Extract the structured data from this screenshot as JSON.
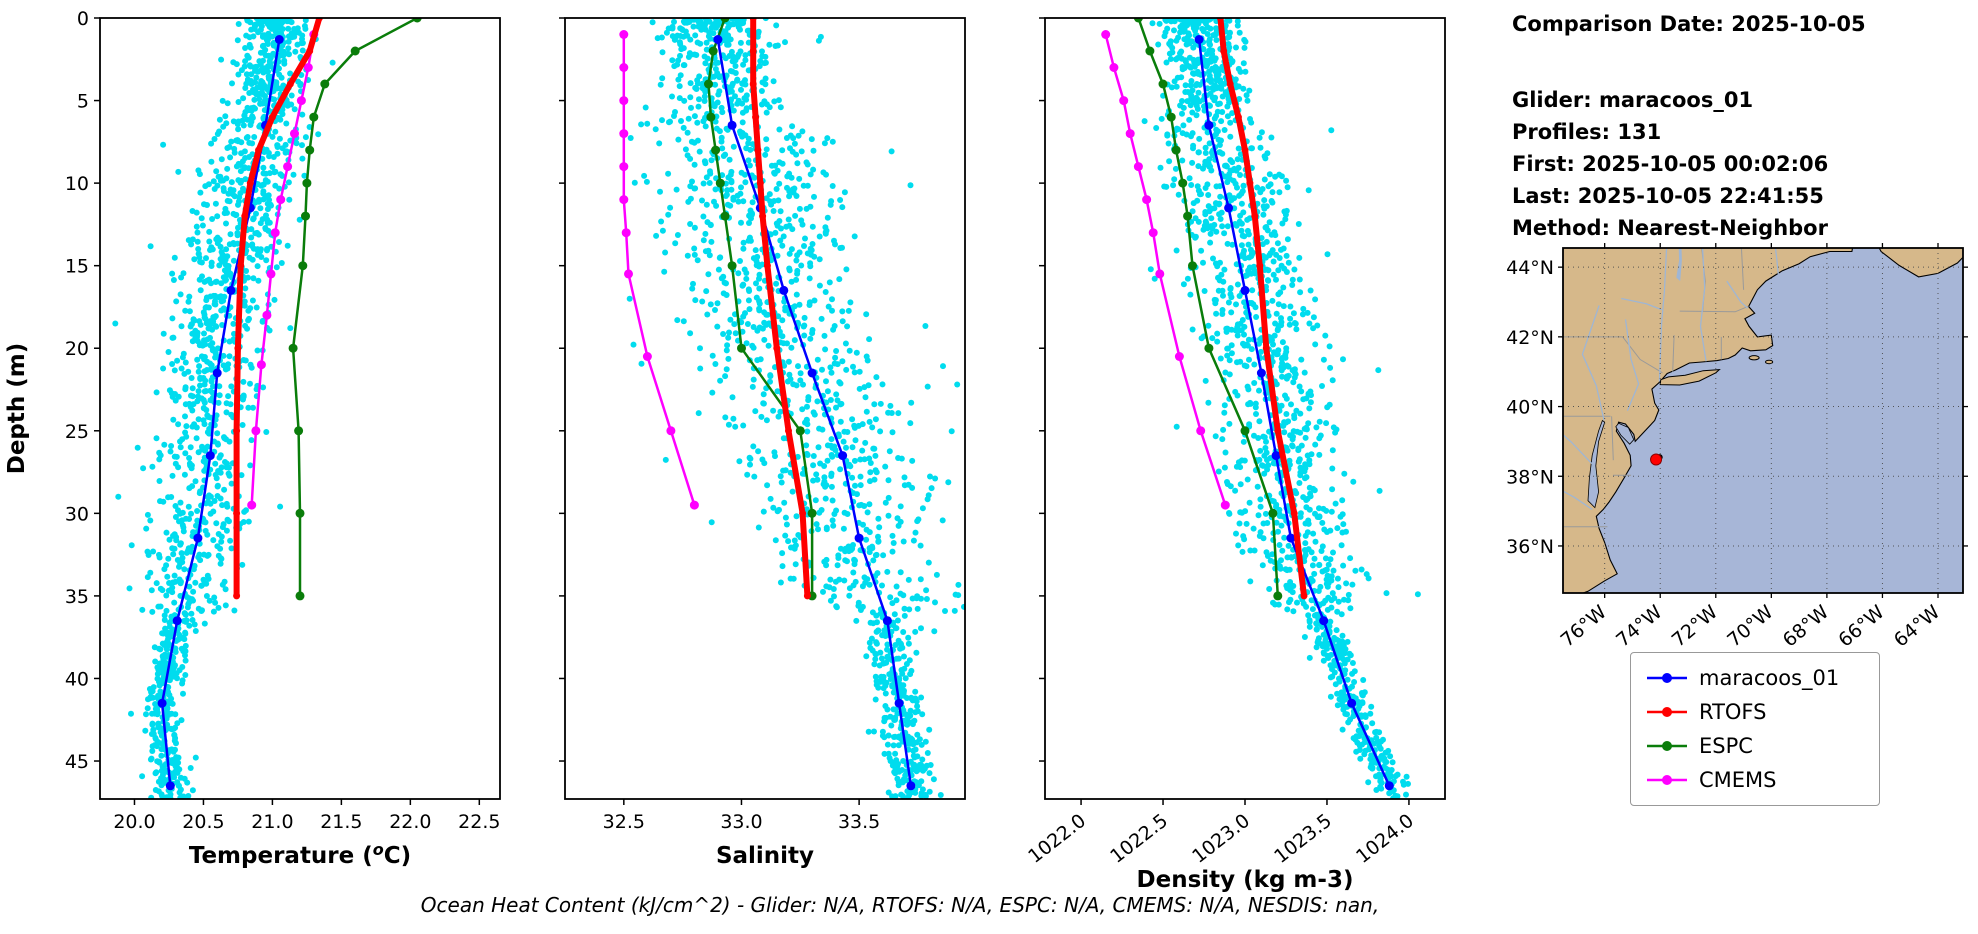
{
  "info_panel": {
    "comparison_date": "Comparison Date: 2025-10-05",
    "glider": "Glider: maracoos_01",
    "profiles": "Profiles: 131",
    "first": "First: 2025-10-05 00:02:06",
    "last": "Last: 2025-10-05 22:41:55",
    "method": "Method: Nearest-Neighbor"
  },
  "footer_note": "Ocean Heat Content (kJ/cm^2) - Glider: N/A,  RTOFS: N/A,  ESPC: N/A,  CMEMS: N/A,  NESDIS: nan,",
  "legend": {
    "items": [
      {
        "label": "maracoos_01",
        "color": "#0000ff"
      },
      {
        "label": "RTOFS",
        "color": "#ff0000"
      },
      {
        "label": "ESPC",
        "color": "#0a7d0a"
      },
      {
        "label": "CMEMS",
        "color": "#ff00ff"
      }
    ]
  },
  "chart_data": [
    {
      "type": "line",
      "title": "",
      "xlabel": "Temperature (oC)",
      "xlabel_parts": {
        "pre": "Temperature (",
        "sup": "o",
        "post": "C)"
      },
      "ylabel": "Depth (m)",
      "xlim": [
        19.75,
        22.65
      ],
      "ylim": [
        0,
        47.3
      ],
      "xticks": [
        20.0,
        20.5,
        21.0,
        21.5,
        22.0,
        22.5
      ],
      "yticks": [
        0,
        5,
        10,
        15,
        20,
        25,
        30,
        35,
        40,
        45
      ],
      "xtick_decimals": 1,
      "xtick_rotation": 0,
      "scatter_cloud": {
        "name": "glider-raw-points",
        "color": "#00dcee",
        "count": 1500,
        "seed": 11,
        "spread_top": 0.3,
        "spread_mid": 0.42,
        "spread_deep": 0.15,
        "bias": -0.06,
        "follow_series": "maracoos_01"
      },
      "series": [
        {
          "name": "maracoos_01",
          "color": "#0000ff",
          "linewidth": 2.5,
          "marker_radius": 4.5,
          "zorder": 3,
          "depths": [
            1.3,
            6.5,
            11.5,
            16.5,
            21.5,
            26.5,
            31.5,
            36.5,
            41.5,
            46.5
          ],
          "values": [
            21.05,
            20.95,
            20.84,
            20.7,
            20.6,
            20.55,
            20.46,
            20.31,
            20.2,
            20.26
          ]
        },
        {
          "name": "RTOFS",
          "color": "#ff0000",
          "linewidth": 6,
          "marker_radius": 3.5,
          "zorder": 4,
          "depths": [
            0,
            2,
            4,
            6,
            8,
            10,
            12,
            15,
            20,
            25,
            30,
            35
          ],
          "values": [
            21.34,
            21.27,
            21.13,
            21.0,
            20.9,
            20.84,
            20.8,
            20.77,
            20.75,
            20.74,
            20.74,
            20.74
          ]
        },
        {
          "name": "ESPC",
          "color": "#0a7d0a",
          "linewidth": 2.5,
          "marker_radius": 4.5,
          "zorder": 1,
          "depths": [
            0,
            2,
            4,
            6,
            8,
            10,
            12,
            15,
            20,
            25,
            30,
            35
          ],
          "values": [
            22.05,
            21.6,
            21.38,
            21.3,
            21.27,
            21.25,
            21.24,
            21.22,
            21.15,
            21.19,
            21.2,
            21.2
          ]
        },
        {
          "name": "CMEMS",
          "color": "#ff00ff",
          "linewidth": 2.5,
          "marker_radius": 4.5,
          "zorder": 2,
          "depths": [
            1,
            3,
            5,
            7,
            9,
            11,
            13,
            15.5,
            18,
            21,
            25,
            29.5
          ],
          "values": [
            21.3,
            21.26,
            21.21,
            21.16,
            21.11,
            21.06,
            21.02,
            20.99,
            20.96,
            20.92,
            20.88,
            20.85
          ]
        }
      ]
    },
    {
      "type": "line",
      "title": "",
      "xlabel": "Salinity",
      "ylabel": "",
      "xlim": [
        32.25,
        33.95
      ],
      "ylim": [
        0,
        47.3
      ],
      "xticks": [
        32.5,
        33.0,
        33.5
      ],
      "yticks": [
        0,
        5,
        10,
        15,
        20,
        25,
        30,
        35,
        40,
        45
      ],
      "xtick_decimals": 1,
      "xtick_rotation": 0,
      "scatter_cloud": {
        "name": "glider-raw-points",
        "color": "#00dcee",
        "count": 1500,
        "seed": 23,
        "spread_top": 0.28,
        "spread_mid": 0.45,
        "spread_deep": 0.12,
        "bias": -0.05,
        "follow_series": "maracoos_01"
      },
      "series": [
        {
          "name": "maracoos_01",
          "color": "#0000ff",
          "linewidth": 2.5,
          "marker_radius": 4.5,
          "zorder": 3,
          "depths": [
            1.3,
            6.5,
            11.5,
            16.5,
            21.5,
            26.5,
            31.5,
            36.5,
            41.5,
            46.5
          ],
          "values": [
            32.9,
            32.96,
            33.08,
            33.18,
            33.3,
            33.43,
            33.5,
            33.62,
            33.67,
            33.72
          ]
        },
        {
          "name": "RTOFS",
          "color": "#ff0000",
          "linewidth": 6,
          "marker_radius": 3.5,
          "zorder": 4,
          "depths": [
            0,
            2,
            4,
            6,
            8,
            10,
            12,
            15,
            20,
            25,
            30,
            35
          ],
          "values": [
            33.05,
            33.05,
            33.05,
            33.06,
            33.07,
            33.08,
            33.09,
            33.11,
            33.15,
            33.2,
            33.26,
            33.28
          ]
        },
        {
          "name": "ESPC",
          "color": "#0a7d0a",
          "linewidth": 2.5,
          "marker_radius": 4.5,
          "zorder": 1,
          "depths": [
            0,
            2,
            4,
            6,
            8,
            10,
            12,
            15,
            20,
            25,
            30,
            35
          ],
          "values": [
            32.93,
            32.88,
            32.86,
            32.87,
            32.89,
            32.91,
            32.93,
            32.96,
            33.0,
            33.25,
            33.3,
            33.3
          ]
        },
        {
          "name": "CMEMS",
          "color": "#ff00ff",
          "linewidth": 2.5,
          "marker_radius": 4.5,
          "zorder": 2,
          "depths": [
            1,
            3,
            5,
            7,
            9,
            11,
            13,
            15.5,
            20.5,
            25,
            29.5
          ],
          "values": [
            32.5,
            32.5,
            32.5,
            32.5,
            32.5,
            32.5,
            32.51,
            32.52,
            32.6,
            32.7,
            32.8
          ]
        }
      ]
    },
    {
      "type": "line",
      "title": "",
      "xlabel": "Density (kg m-3)",
      "ylabel": "",
      "xlim": [
        1021.78,
        1024.22
      ],
      "ylim": [
        0,
        47.3
      ],
      "xticks": [
        1022.0,
        1022.5,
        1023.0,
        1023.5,
        1024.0
      ],
      "yticks": [
        0,
        5,
        10,
        15,
        20,
        25,
        30,
        35,
        40,
        45
      ],
      "xtick_decimals": 1,
      "xtick_rotation": 38,
      "scatter_cloud": {
        "name": "glider-raw-points",
        "color": "#00dcee",
        "count": 1500,
        "seed": 37,
        "spread_top": 0.3,
        "spread_mid": 0.42,
        "spread_deep": 0.12,
        "bias": 0.04,
        "follow_series": "maracoos_01"
      },
      "series": [
        {
          "name": "maracoos_01",
          "color": "#0000ff",
          "linewidth": 2.5,
          "marker_radius": 4.5,
          "zorder": 3,
          "depths": [
            1.3,
            6.5,
            11.5,
            16.5,
            21.5,
            26.5,
            31.5,
            36.5,
            41.5,
            46.5
          ],
          "values": [
            1022.72,
            1022.78,
            1022.9,
            1023.0,
            1023.1,
            1023.19,
            1023.28,
            1023.48,
            1023.65,
            1023.88
          ]
        },
        {
          "name": "RTOFS",
          "color": "#ff0000",
          "linewidth": 6,
          "marker_radius": 3.5,
          "zorder": 4,
          "depths": [
            0,
            2,
            4,
            6,
            8,
            10,
            12,
            15,
            20,
            25,
            30,
            35
          ],
          "values": [
            1022.85,
            1022.87,
            1022.91,
            1022.96,
            1023.0,
            1023.03,
            1023.06,
            1023.09,
            1023.13,
            1023.2,
            1023.3,
            1023.36
          ]
        },
        {
          "name": "ESPC",
          "color": "#0a7d0a",
          "linewidth": 2.5,
          "marker_radius": 4.5,
          "zorder": 1,
          "depths": [
            0,
            2,
            4,
            6,
            8,
            10,
            12,
            15,
            20,
            25,
            30,
            35
          ],
          "values": [
            1022.35,
            1022.42,
            1022.5,
            1022.55,
            1022.58,
            1022.62,
            1022.65,
            1022.68,
            1022.78,
            1023.0,
            1023.17,
            1023.2
          ]
        },
        {
          "name": "CMEMS",
          "color": "#ff00ff",
          "linewidth": 2.5,
          "marker_radius": 4.5,
          "zorder": 2,
          "depths": [
            1,
            3,
            5,
            7,
            9,
            11,
            13,
            15.5,
            20.5,
            25,
            29.5
          ],
          "values": [
            1022.15,
            1022.2,
            1022.26,
            1022.3,
            1022.35,
            1022.4,
            1022.44,
            1022.48,
            1022.6,
            1022.73,
            1022.88
          ]
        }
      ]
    }
  ],
  "map": {
    "lon_range": [
      -77.5,
      -63.1
    ],
    "lat_range": [
      34.65,
      44.55
    ],
    "lon_ticks": [
      {
        "value": -76,
        "label": "76°W"
      },
      {
        "value": -74,
        "label": "74°W"
      },
      {
        "value": -72,
        "label": "72°W"
      },
      {
        "value": -70,
        "label": "70°W"
      },
      {
        "value": -68,
        "label": "68°W"
      },
      {
        "value": -66,
        "label": "66°W"
      },
      {
        "value": -64,
        "label": "64°W"
      }
    ],
    "lat_ticks": [
      {
        "value": 36,
        "label": "36°N"
      },
      {
        "value": 38,
        "label": "38°N"
      },
      {
        "value": 40,
        "label": "40°N"
      },
      {
        "value": 42,
        "label": "42°N"
      },
      {
        "value": 44,
        "label": "44°N"
      }
    ],
    "glider_marker": {
      "lon": -74.15,
      "lat": 38.48,
      "color": "#ff0000"
    },
    "track_marker": {
      "lon": -74.02,
      "lat": 38.55,
      "color": "#000000"
    },
    "colors": {
      "land": "#d6b88a",
      "ocean": "#a7b6d7",
      "river": "#9fb6d4",
      "border": "#9a9a9a",
      "coast": "#000000"
    }
  }
}
